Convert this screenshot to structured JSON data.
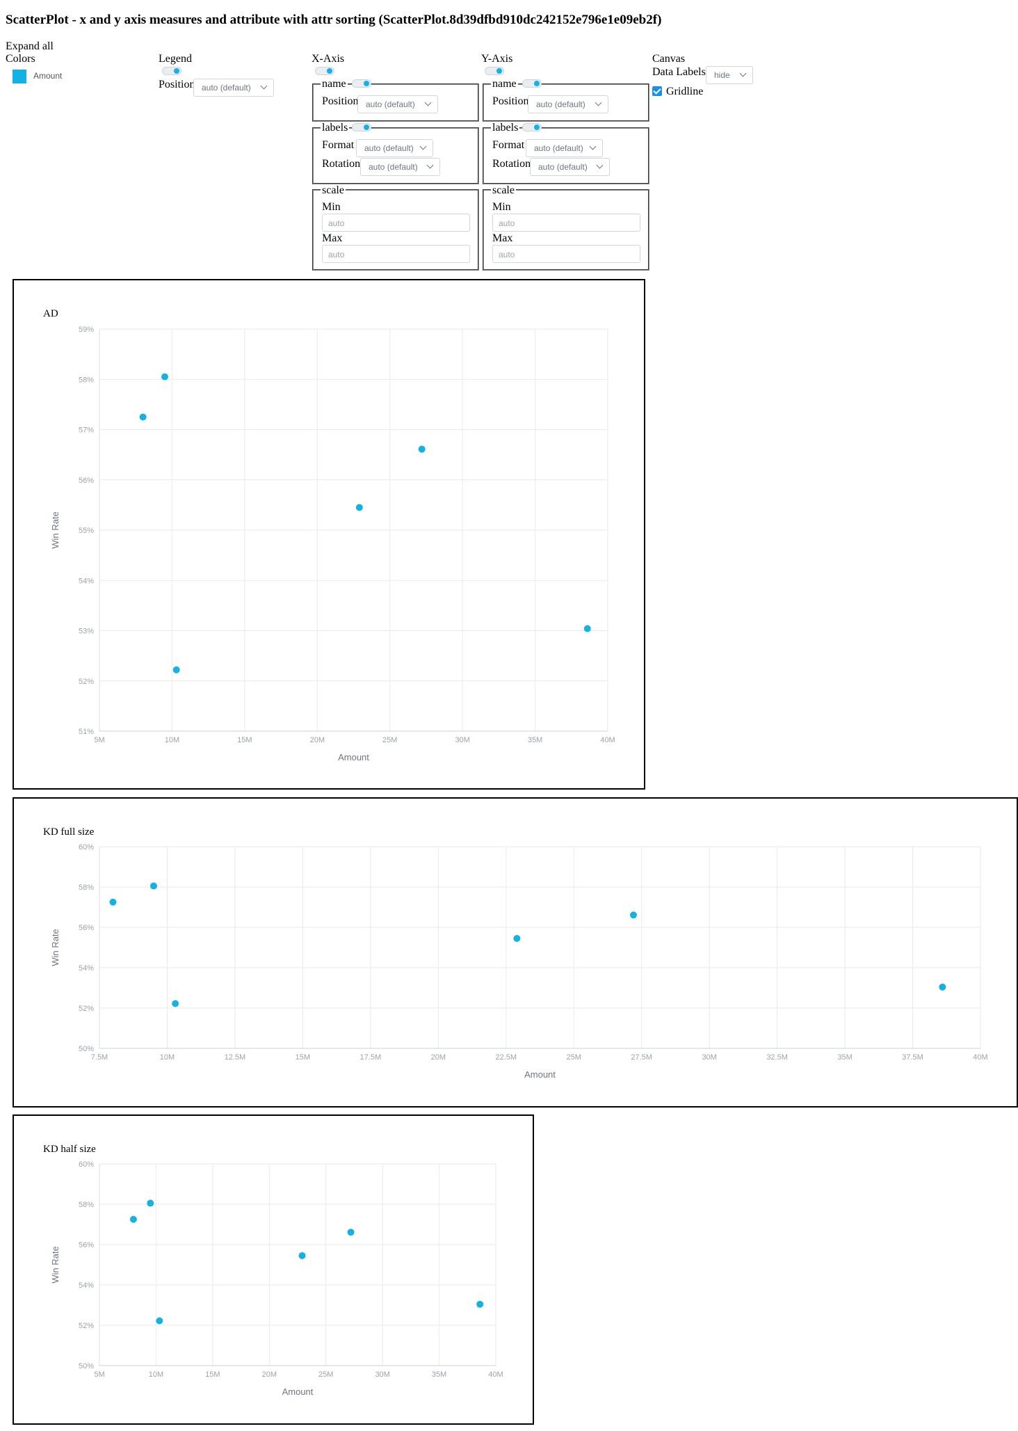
{
  "page": {
    "title": "ScatterPlot - x and y axis measures and attribute with attr sorting (ScatterPlot.8d39dfbd910dc242152e796e1e09eb2f)"
  },
  "colors_panel": {
    "expand_all": "Expand all",
    "colors_label": "Colors",
    "items": [
      {
        "label": "Amount",
        "color": "#14b2e2"
      }
    ]
  },
  "legend_panel": {
    "heading": "Legend",
    "enabled": true,
    "position_label": "Position",
    "position_value": "auto (default)"
  },
  "x_axis_panel": {
    "heading": "X-Axis",
    "enabled": true,
    "name_section": {
      "label": "name",
      "enabled": true,
      "position_label": "Position",
      "position_value": "auto (default)"
    },
    "labels_section": {
      "label": "labels",
      "enabled": true,
      "format_label": "Format",
      "format_value": "auto (default)",
      "rotation_label": "Rotation",
      "rotation_value": "auto (default)"
    },
    "scale_section": {
      "label": "scale",
      "min_label": "Min",
      "min_placeholder": "auto",
      "max_label": "Max",
      "max_placeholder": "auto"
    }
  },
  "y_axis_panel": {
    "heading": "Y-Axis",
    "enabled": true,
    "name_section": {
      "label": "name",
      "enabled": true,
      "position_label": "Position",
      "position_value": "auto (default)"
    },
    "labels_section": {
      "label": "labels",
      "enabled": true,
      "format_label": "Format",
      "format_value": "auto (default)",
      "rotation_label": "Rotation",
      "rotation_value": "auto (default)"
    },
    "scale_section": {
      "label": "scale",
      "min_label": "Min",
      "min_placeholder": "auto",
      "max_label": "Max",
      "max_placeholder": "auto"
    }
  },
  "canvas_panel": {
    "heading": "Canvas",
    "data_labels_label": "Data Labels",
    "data_labels_value": "hide",
    "gridline_label": "Gridline",
    "gridline_checked": true
  },
  "chart_data": [
    {
      "type": "scatter",
      "title": "AD",
      "xlabel": "Amount",
      "ylabel": "Win Rate",
      "xlim": [
        5000000,
        40000000
      ],
      "ylim": [
        0.51,
        0.59
      ],
      "x_ticks": [
        "5M",
        "10M",
        "15M",
        "20M",
        "25M",
        "30M",
        "35M",
        "40M"
      ],
      "y_ticks": [
        "51%",
        "52%",
        "53%",
        "54%",
        "55%",
        "56%",
        "57%",
        "58%",
        "59%"
      ],
      "grid": true,
      "color": "#14b2e2",
      "points": [
        {
          "x": 8000000,
          "y": 0.5725
        },
        {
          "x": 9500000,
          "y": 0.5805
        },
        {
          "x": 10300000,
          "y": 0.5222
        },
        {
          "x": 22900000,
          "y": 0.5545
        },
        {
          "x": 27200000,
          "y": 0.5661
        },
        {
          "x": 38600000,
          "y": 0.5304
        }
      ]
    },
    {
      "type": "scatter",
      "title": "KD full size",
      "xlabel": "Amount",
      "ylabel": "Win Rate",
      "xlim": [
        7500000,
        40000000
      ],
      "ylim": [
        0.5,
        0.6
      ],
      "x_ticks": [
        "7.5M",
        "10M",
        "12.5M",
        "15M",
        "17.5M",
        "20M",
        "22.5M",
        "25M",
        "27.5M",
        "30M",
        "32.5M",
        "35M",
        "37.5M",
        "40M"
      ],
      "y_ticks": [
        "50%",
        "52%",
        "54%",
        "56%",
        "58%",
        "60%"
      ],
      "grid": true,
      "color": "#14b2e2",
      "points": [
        {
          "x": 8000000,
          "y": 0.5725
        },
        {
          "x": 9500000,
          "y": 0.5805
        },
        {
          "x": 10300000,
          "y": 0.5222
        },
        {
          "x": 22900000,
          "y": 0.5545
        },
        {
          "x": 27200000,
          "y": 0.5661
        },
        {
          "x": 38600000,
          "y": 0.5304
        }
      ]
    },
    {
      "type": "scatter",
      "title": "KD half size",
      "xlabel": "Amount",
      "ylabel": "Win Rate",
      "xlim": [
        5000000,
        40000000
      ],
      "ylim": [
        0.5,
        0.6
      ],
      "x_ticks": [
        "5M",
        "10M",
        "15M",
        "20M",
        "25M",
        "30M",
        "35M",
        "40M"
      ],
      "y_ticks": [
        "50%",
        "52%",
        "54%",
        "56%",
        "58%",
        "60%"
      ],
      "grid": true,
      "color": "#14b2e2",
      "points": [
        {
          "x": 8000000,
          "y": 0.5725
        },
        {
          "x": 9500000,
          "y": 0.5805
        },
        {
          "x": 10300000,
          "y": 0.5222
        },
        {
          "x": 22900000,
          "y": 0.5545
        },
        {
          "x": 27200000,
          "y": 0.5661
        },
        {
          "x": 38600000,
          "y": 0.5304
        }
      ]
    }
  ]
}
